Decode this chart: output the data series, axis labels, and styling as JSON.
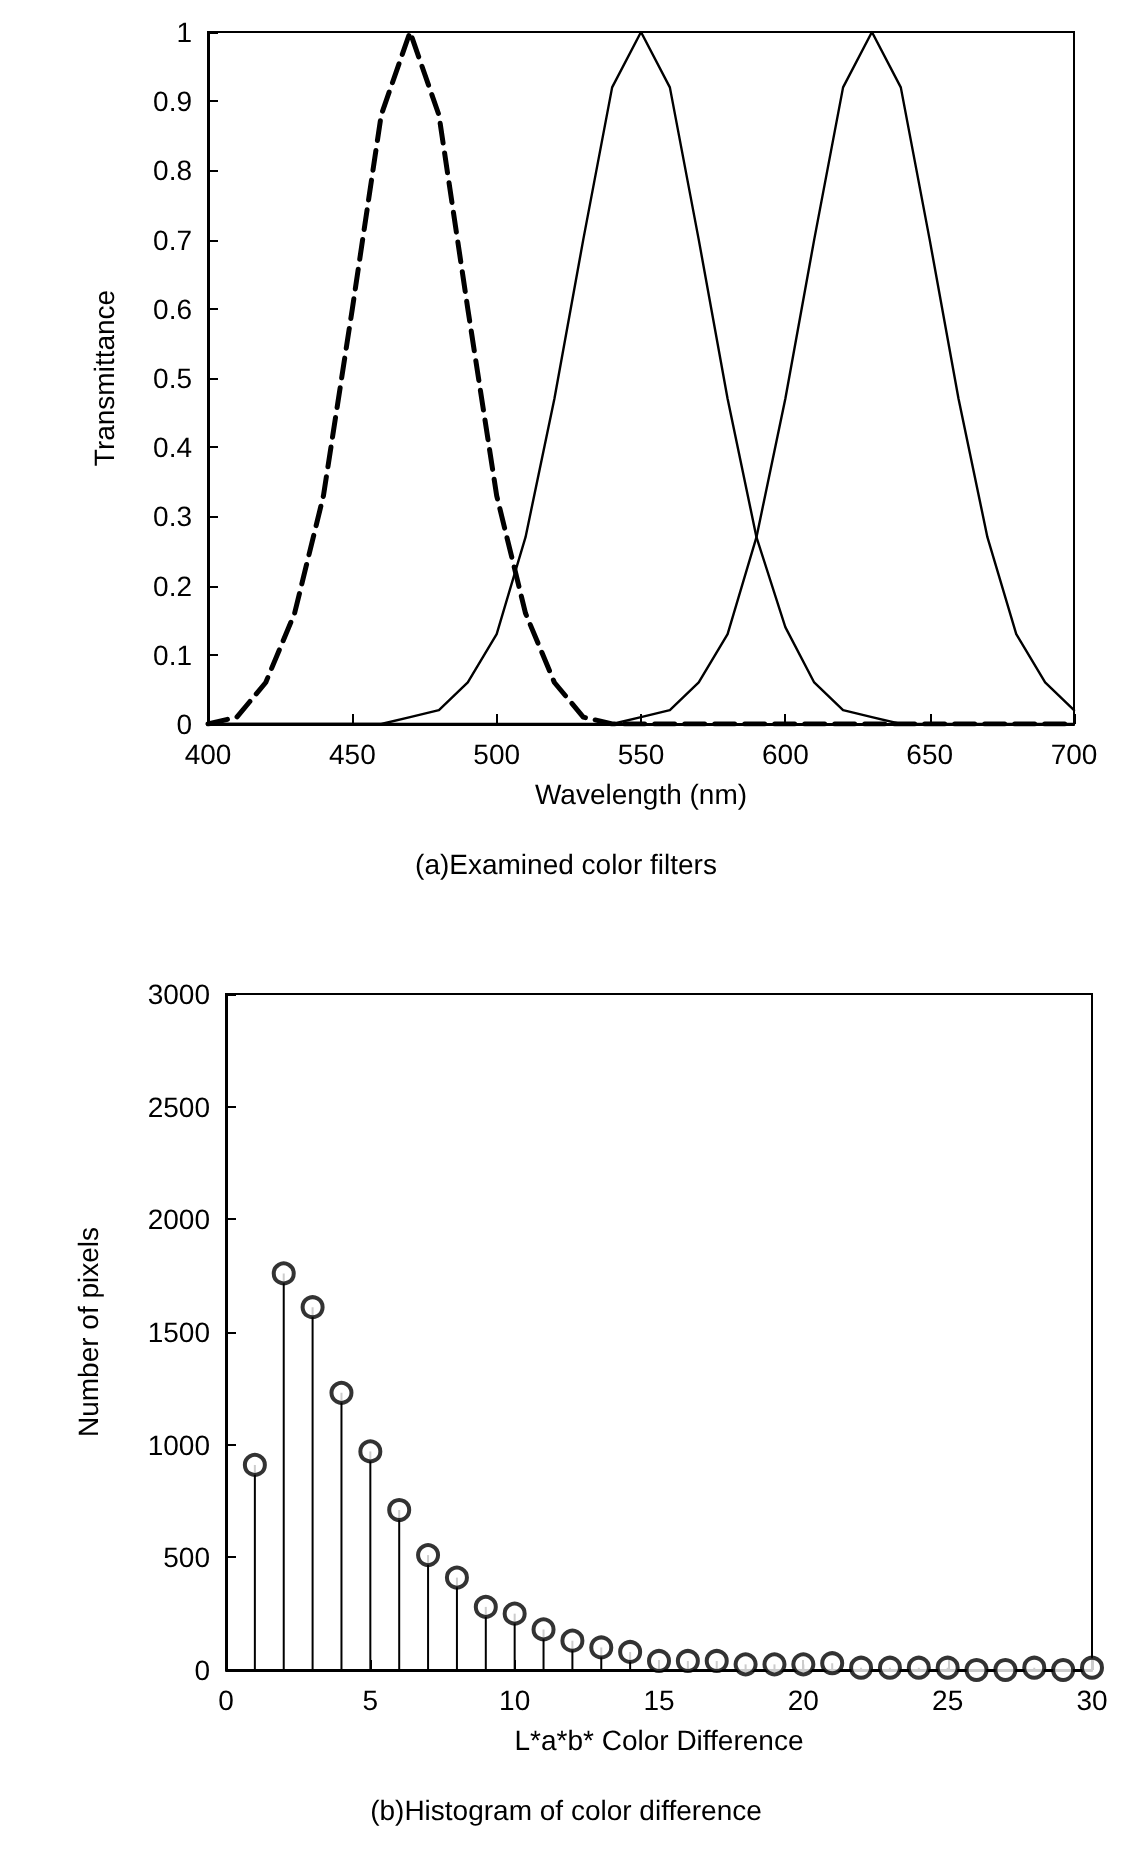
{
  "chart_data": [
    {
      "type": "line",
      "xlabel": "Wavelength (nm)",
      "ylabel": "Transmittance",
      "annotations": [
        "(a)Examined color filters"
      ],
      "x": [
        400,
        410,
        420,
        430,
        440,
        450,
        460,
        470,
        480,
        490,
        500,
        510,
        520,
        530,
        540,
        550,
        560,
        570,
        580,
        590,
        600,
        610,
        620,
        630,
        640,
        650,
        660,
        670,
        680,
        690,
        700
      ],
      "series": [
        {
          "color": "#000000",
          "line_style": "dashed",
          "values": [
            0,
            0.01,
            0.06,
            0.16,
            0.33,
            0.6,
            0.88,
            1,
            0.88,
            0.6,
            0.33,
            0.16,
            0.06,
            0.01,
            0,
            0,
            0,
            0,
            0,
            0,
            0,
            0,
            0,
            0,
            0,
            0,
            0,
            0,
            0,
            0,
            0
          ]
        },
        {
          "color": "#000000",
          "line_style": "solid",
          "values": [
            0,
            0,
            0,
            0,
            0,
            0,
            0,
            0.01,
            0.02,
            0.06,
            0.13,
            0.27,
            0.47,
            0.7,
            0.92,
            1,
            0.92,
            0.7,
            0.47,
            0.27,
            0.14,
            0.06,
            0.02,
            0.01,
            0,
            0,
            0,
            0,
            0,
            0,
            0
          ]
        },
        {
          "color": "#000000",
          "line_style": "solid",
          "values": [
            0,
            0,
            0,
            0,
            0,
            0,
            0,
            0,
            0,
            0,
            0,
            0,
            0,
            0,
            0,
            0.01,
            0.02,
            0.06,
            0.13,
            0.27,
            0.47,
            0.7,
            0.92,
            1,
            0.92,
            0.7,
            0.47,
            0.27,
            0.13,
            0.06,
            0.02
          ]
        }
      ],
      "xlim": [
        400,
        700
      ],
      "xticks": [
        400,
        450,
        500,
        550,
        600,
        650,
        700
      ],
      "ylim": [
        0,
        1
      ],
      "yticks": [
        0,
        0.1,
        0.2,
        0.3,
        0.4,
        0.5,
        0.6,
        0.7,
        0.8,
        0.9,
        1
      ],
      "marker": "none",
      "grid": false
    },
    {
      "type": "lollipop",
      "xlabel": "L*a*b* Color Difference",
      "ylabel": "Number of pixels",
      "annotations": [
        "(b)Histogram of color difference"
      ],
      "x": [
        1,
        2,
        3,
        4,
        5,
        6,
        7,
        8,
        9,
        10,
        11,
        12,
        13,
        14,
        15,
        16,
        17,
        18,
        19,
        20,
        21,
        22,
        23,
        24,
        25,
        26,
        27,
        28,
        29,
        30
      ],
      "values": [
        910,
        1760,
        1610,
        1230,
        970,
        710,
        510,
        410,
        280,
        250,
        180,
        130,
        100,
        80,
        40,
        40,
        40,
        25,
        25,
        25,
        30,
        10,
        10,
        10,
        10,
        0,
        0,
        10,
        0,
        10
      ],
      "color": "#000000",
      "marker": "circle",
      "xlim": [
        0,
        30
      ],
      "xticks": [
        0,
        5,
        10,
        15,
        20,
        25,
        30
      ],
      "ylim": [
        0,
        3000
      ],
      "yticks": [
        0,
        500,
        1000,
        1500,
        2000,
        2500,
        3000
      ],
      "grid": false
    }
  ]
}
